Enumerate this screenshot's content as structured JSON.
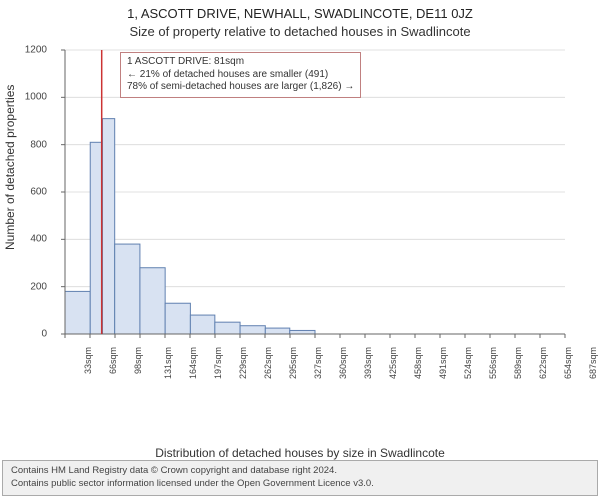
{
  "title_line1": "1, ASCOTT DRIVE, NEWHALL, SWADLINCOTE, DE11 0JZ",
  "title_line2": "Size of property relative to detached houses in Swadlincote",
  "y_axis_label": "Number of detached properties",
  "x_axis_label": "Distribution of detached houses by size in Swadlincote",
  "footer_line1": "Contains HM Land Registry data © Crown copyright and database right 2024.",
  "footer_line2": "Contains public sector information licensed under the Open Government Licence v3.0.",
  "annotation": {
    "line1": "1 ASCOTT DRIVE: 81sqm",
    "line2": "← 21% of detached houses are smaller (491)",
    "line3": "78% of semi-detached houses are larger (1,826) →"
  },
  "chart": {
    "type": "histogram",
    "x_ticks": [
      "33sqm",
      "66sqm",
      "98sqm",
      "131sqm",
      "164sqm",
      "197sqm",
      "229sqm",
      "262sqm",
      "295sqm",
      "327sqm",
      "360sqm",
      "393sqm",
      "425sqm",
      "458sqm",
      "491sqm",
      "524sqm",
      "556sqm",
      "589sqm",
      "622sqm",
      "654sqm",
      "687sqm"
    ],
    "x_range_min": 33,
    "x_range_max": 687,
    "y_ticks": [
      0,
      200,
      400,
      600,
      800,
      1000,
      1200
    ],
    "ylim": [
      0,
      1200
    ],
    "bar_color": "#d8e2f2",
    "bar_border_color": "#6080b0",
    "grid_color": "#d8d8d8",
    "axis_color": "#666666",
    "marker_line_color": "#cc3333",
    "marker_line_x": 81,
    "background_color": "#ffffff",
    "bars": [
      {
        "x_start": 33,
        "x_end": 66,
        "count": 180
      },
      {
        "x_start": 66,
        "x_end": 82,
        "count": 810
      },
      {
        "x_start": 82,
        "x_end": 98,
        "count": 910
      },
      {
        "x_start": 98,
        "x_end": 131,
        "count": 380
      },
      {
        "x_start": 131,
        "x_end": 164,
        "count": 280
      },
      {
        "x_start": 164,
        "x_end": 197,
        "count": 130
      },
      {
        "x_start": 197,
        "x_end": 229,
        "count": 80
      },
      {
        "x_start": 229,
        "x_end": 262,
        "count": 50
      },
      {
        "x_start": 262,
        "x_end": 295,
        "count": 35
      },
      {
        "x_start": 295,
        "x_end": 327,
        "count": 25
      },
      {
        "x_start": 327,
        "x_end": 360,
        "count": 15
      }
    ]
  }
}
